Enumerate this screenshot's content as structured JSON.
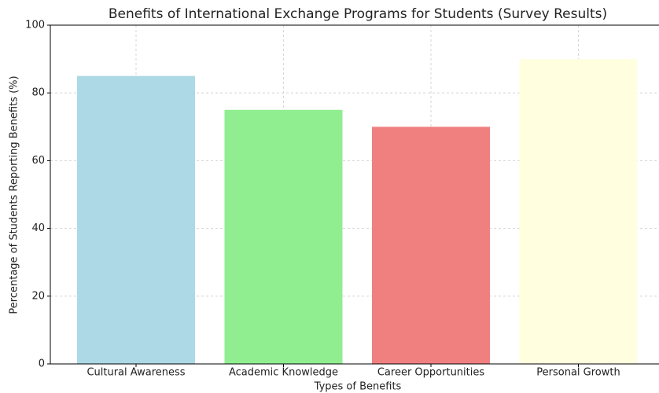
{
  "chart_data": {
    "type": "bar",
    "title": "Benefits of International Exchange Programs for Students (Survey Results)",
    "x_label": "Types of Benefits",
    "y_label": "Percentage of Students Reporting Benefits (%)",
    "categories": [
      "Cultural Awareness",
      "Academic Knowledge",
      "Career Opportunities",
      "Personal Growth"
    ],
    "values": [
      85,
      75,
      70,
      90
    ],
    "colors": [
      "#add8e6",
      "#90ee90",
      "#f08080",
      "#ffffe0"
    ],
    "ylim": [
      0,
      100
    ],
    "yticks": [
      0,
      20,
      40,
      60,
      80,
      100
    ],
    "grid": true
  }
}
